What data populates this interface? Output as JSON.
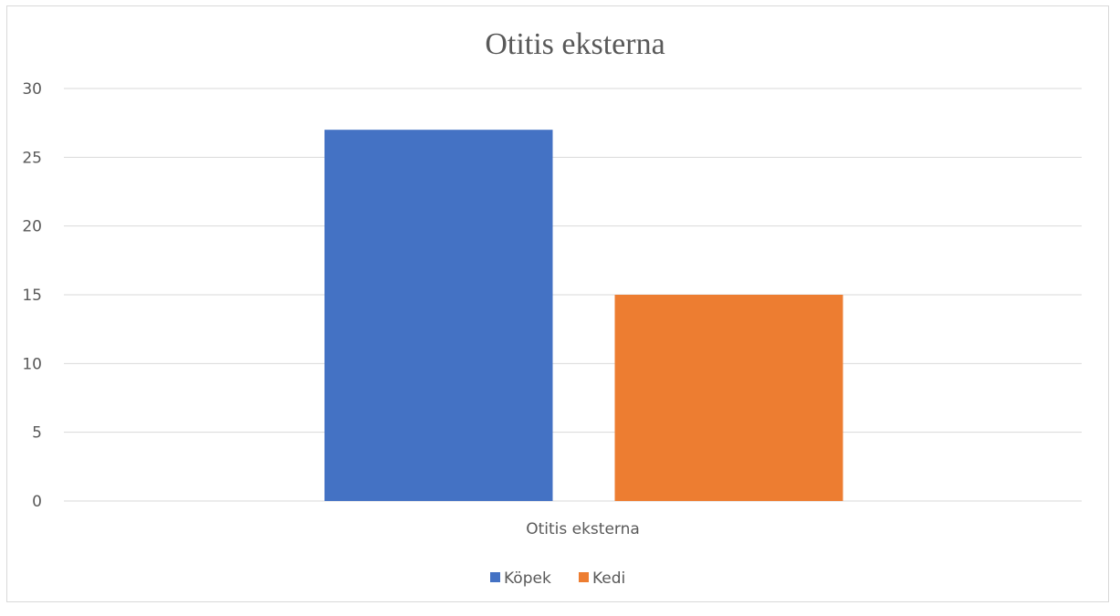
{
  "chart_data": {
    "type": "bar",
    "title": "Otitis eksterna",
    "categories": [
      "Otitis eksterna"
    ],
    "series": [
      {
        "name": "Köpek",
        "values": [
          27
        ],
        "color": "#4472c4"
      },
      {
        "name": "Kedi",
        "values": [
          15
        ],
        "color": "#ed7d31"
      }
    ],
    "ylim": [
      0,
      30
    ],
    "yticks": [
      "0",
      "5",
      "10",
      "15",
      "20",
      "25",
      "30"
    ],
    "grid": true,
    "legend": "bottom",
    "gridColor": "#d9d9d9",
    "textColor": "#595959"
  }
}
